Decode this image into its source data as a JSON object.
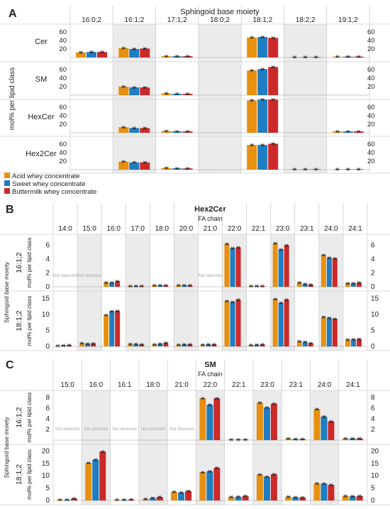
{
  "colors": {
    "acid": "#E8900F",
    "sweet": "#1F7DC2",
    "butter": "#CC2A2A",
    "shade": "#EBEBEB",
    "grid": "#CFCFCF",
    "nd": "#AAAAAA"
  },
  "legend": [
    "Acid whey concentrate",
    "Sweet whey concentrate",
    "Buttermilk whey concentrate"
  ],
  "not_detected": "Not detected",
  "chart_data": [
    {
      "type": "bar",
      "panel_letter": "A",
      "title": "Sphingoid base moiety",
      "y_label": "mol% per lipid class",
      "ylim": [
        0,
        70
      ],
      "yticks": [
        20,
        40,
        60
      ],
      "categories": [
        "16:0;2",
        "16:1;2",
        "17:1;2",
        "18:0;2",
        "18:1;2",
        "18:2;2",
        "19:1;2"
      ],
      "shaded_columns": [
        1,
        3,
        5
      ],
      "rows": [
        {
          "label": "Cer",
          "values": [
            [
              12,
              13,
              13
            ],
            [
              22,
              20,
              21
            ],
            [
              3,
              3,
              3
            ],
            [
              0,
              0,
              0
            ],
            [
              47,
              48,
              46
            ],
            [
              1,
              1,
              1
            ],
            [
              2,
              2,
              2
            ]
          ]
        },
        {
          "label": "SM",
          "values": [
            [
              0,
              0,
              0
            ],
            [
              20,
              18,
              18
            ],
            [
              4,
              3,
              3
            ],
            [
              0,
              0,
              0
            ],
            [
              58,
              61,
              66
            ],
            [
              0,
              0,
              0
            ],
            [
              0,
              0,
              0
            ]
          ]
        },
        {
          "label": "HexCer",
          "values": [
            [
              0,
              0,
              0
            ],
            [
              13,
              11,
              11
            ],
            [
              4,
              3,
              3
            ],
            [
              0,
              0,
              0
            ],
            [
              76,
              78,
              78
            ],
            [
              0,
              0,
              0
            ],
            [
              3,
              3,
              3
            ]
          ]
        },
        {
          "label": "Hex2Cer",
          "values": [
            [
              0,
              0,
              0
            ],
            [
              19,
              17,
              17
            ],
            [
              4,
              3,
              3
            ],
            [
              0,
              0,
              0
            ],
            [
              58,
              58,
              61
            ],
            [
              1,
              1,
              1
            ],
            [
              1,
              1,
              1
            ]
          ]
        }
      ]
    },
    {
      "type": "bar",
      "panel_letter": "B",
      "title": "Hex2Cer",
      "x_label": "FA chain",
      "y_label": "Sphingoid base moiety",
      "y_sublabel": "mol% per lipid class",
      "categories": [
        "14:0",
        "15:0",
        "16:0",
        "17:0",
        "18:0",
        "20:0",
        "21:0",
        "22:0",
        "22:1",
        "23:0",
        "23:1",
        "24:0",
        "24:1"
      ],
      "shaded_columns": [
        1,
        3,
        5,
        7,
        9,
        11
      ],
      "rows": [
        {
          "label": "16:1;2",
          "ylim": [
            0,
            7
          ],
          "yticks": [
            0,
            2,
            4,
            6
          ],
          "not_detected": [
            0,
            1,
            6
          ],
          "values": [
            [
              0,
              0,
              0
            ],
            [
              0,
              0,
              0
            ],
            [
              0.6,
              0.6,
              0.8
            ],
            [
              0.1,
              0.1,
              0.1
            ],
            [
              0.2,
              0.2,
              0.2
            ],
            [
              0.2,
              0.2,
              0.2
            ],
            [
              0,
              0,
              0
            ],
            [
              6.2,
              5.6,
              5.7
            ],
            [
              0.1,
              0.1,
              0.1
            ],
            [
              6.3,
              5.4,
              6.0
            ],
            [
              0.6,
              0.4,
              0.3
            ],
            [
              4.6,
              4.2,
              4.1
            ],
            [
              0.5,
              0.5,
              0.6
            ]
          ]
        },
        {
          "label": "18:1;2",
          "ylim": [
            0,
            16
          ],
          "yticks": [
            0,
            5,
            10,
            15
          ],
          "not_detected": [],
          "values": [
            [
              0.2,
              0.3,
              0.4
            ],
            [
              1.0,
              0.8,
              0.9
            ],
            [
              9.8,
              11.0,
              11.1
            ],
            [
              0.7,
              0.7,
              0.6
            ],
            [
              0.6,
              0.8,
              1.1
            ],
            [
              0.5,
              0.6,
              0.6
            ],
            [
              0.5,
              0.6,
              0.6
            ],
            [
              14.2,
              13.9,
              14.6
            ],
            [
              0.4,
              0.5,
              0.6
            ],
            [
              14.8,
              13.6,
              14.6
            ],
            [
              1.6,
              1.4,
              1.0
            ],
            [
              9.2,
              8.9,
              8.6
            ],
            [
              2.1,
              2.2,
              2.3
            ]
          ]
        }
      ]
    },
    {
      "type": "bar",
      "panel_letter": "C",
      "title": "SM",
      "x_label": "FA chain",
      "y_label": "Sphingoid base moiety",
      "y_sublabel": "mol% per lipid class",
      "categories": [
        "15:0",
        "16:0",
        "16:1",
        "18:0",
        "21:0",
        "22:0",
        "22:1",
        "23:0",
        "23:1",
        "24:0",
        "24:1"
      ],
      "shaded_columns": [
        1,
        3,
        5,
        7,
        9
      ],
      "rows": [
        {
          "label": "16:1;2",
          "ylim": [
            0,
            8.5
          ],
          "yticks": [
            2,
            4,
            6,
            8
          ],
          "not_detected": [
            0,
            1,
            2,
            3,
            4
          ],
          "values": [
            [
              0,
              0,
              0
            ],
            [
              0,
              0,
              0
            ],
            [
              0,
              0,
              0
            ],
            [
              0,
              0,
              0
            ],
            [
              0,
              0,
              0
            ],
            [
              7.8,
              6.6,
              7.8
            ],
            [
              0.1,
              0.1,
              0.1
            ],
            [
              7.0,
              6.1,
              6.8
            ],
            [
              0.3,
              0.2,
              0.2
            ],
            [
              5.8,
              4.4,
              3.5
            ],
            [
              0.3,
              0.3,
              0.3
            ]
          ]
        },
        {
          "label": "18:1;2",
          "ylim": [
            0,
            21
          ],
          "yticks": [
            0,
            5,
            10,
            15,
            20
          ],
          "not_detected": [],
          "values": [
            [
              0.3,
              0.3,
              0.8
            ],
            [
              15.2,
              16.5,
              19.8
            ],
            [
              0.3,
              0.3,
              0.4
            ],
            [
              0.6,
              1.0,
              1.4
            ],
            [
              3.5,
              3.2,
              3.8
            ],
            [
              11.4,
              11.8,
              13.2
            ],
            [
              1.4,
              1.5,
              1.8
            ],
            [
              10.5,
              9.6,
              10.6
            ],
            [
              1.5,
              1.3,
              1.2
            ],
            [
              6.9,
              6.8,
              6.3
            ],
            [
              1.8,
              1.7,
              1.8
            ]
          ]
        }
      ]
    }
  ]
}
